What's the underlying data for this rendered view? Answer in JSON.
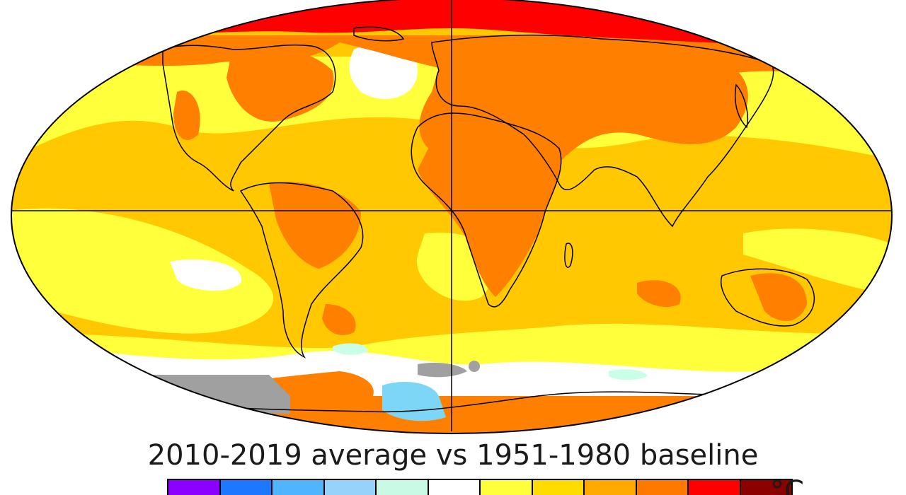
{
  "title": "2010-2019 average vs 1951-1980 baseline",
  "unit": "°C",
  "palette": {
    "strong_warm": "#ff0000",
    "warm": "#ff7f00",
    "moderate": "#ffc800",
    "slight": "#ffff3c",
    "neutral": "#ffffff",
    "cool_slight": "#c8ffe6",
    "missing": "#a0a0a0",
    "cool": "#7dd6f5",
    "outline": "#000000"
  },
  "legend_colors": [
    "#8c00ff",
    "#1e78ff",
    "#50b4ff",
    "#96d2fa",
    "#c8fae6",
    "#ffffff",
    "#ffff3c",
    "#ffdc00",
    "#ffaa00",
    "#ff7800",
    "#ff0000",
    "#8c0000"
  ]
}
